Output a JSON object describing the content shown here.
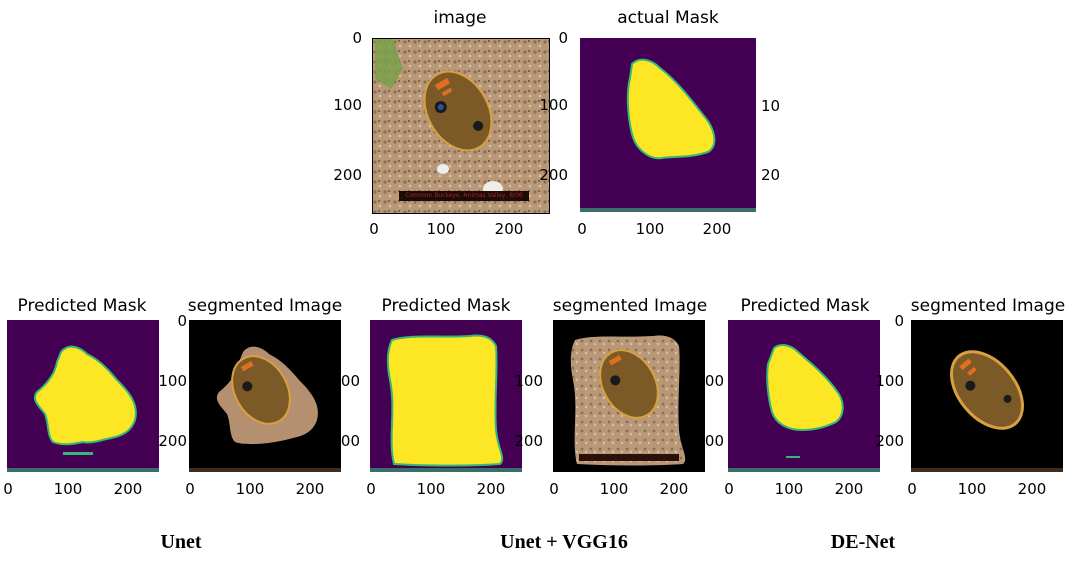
{
  "top": {
    "image_title": "image",
    "actual_mask_title": "actual Mask",
    "photo_caption": "Common Buckeye, Animas Valley, 8/06",
    "right_edge_ticks": [
      "10",
      "20"
    ]
  },
  "predicted_mask_title": "Predicted Mask",
  "segmented_image_title": "segmented Image",
  "axis": {
    "y_ticks": [
      "0",
      "100",
      "200"
    ],
    "x_ticks": [
      "0",
      "100",
      "200"
    ],
    "y_ticks_clipped": [
      "0",
      "100",
      "200"
    ]
  },
  "models": {
    "unet": "Unet",
    "vgg": "Unet + VGG16",
    "denet": "DE-Net"
  },
  "colors": {
    "mask_bg": "#440154",
    "mask_fg": "#fde725",
    "mask_edge": "#35b779"
  }
}
